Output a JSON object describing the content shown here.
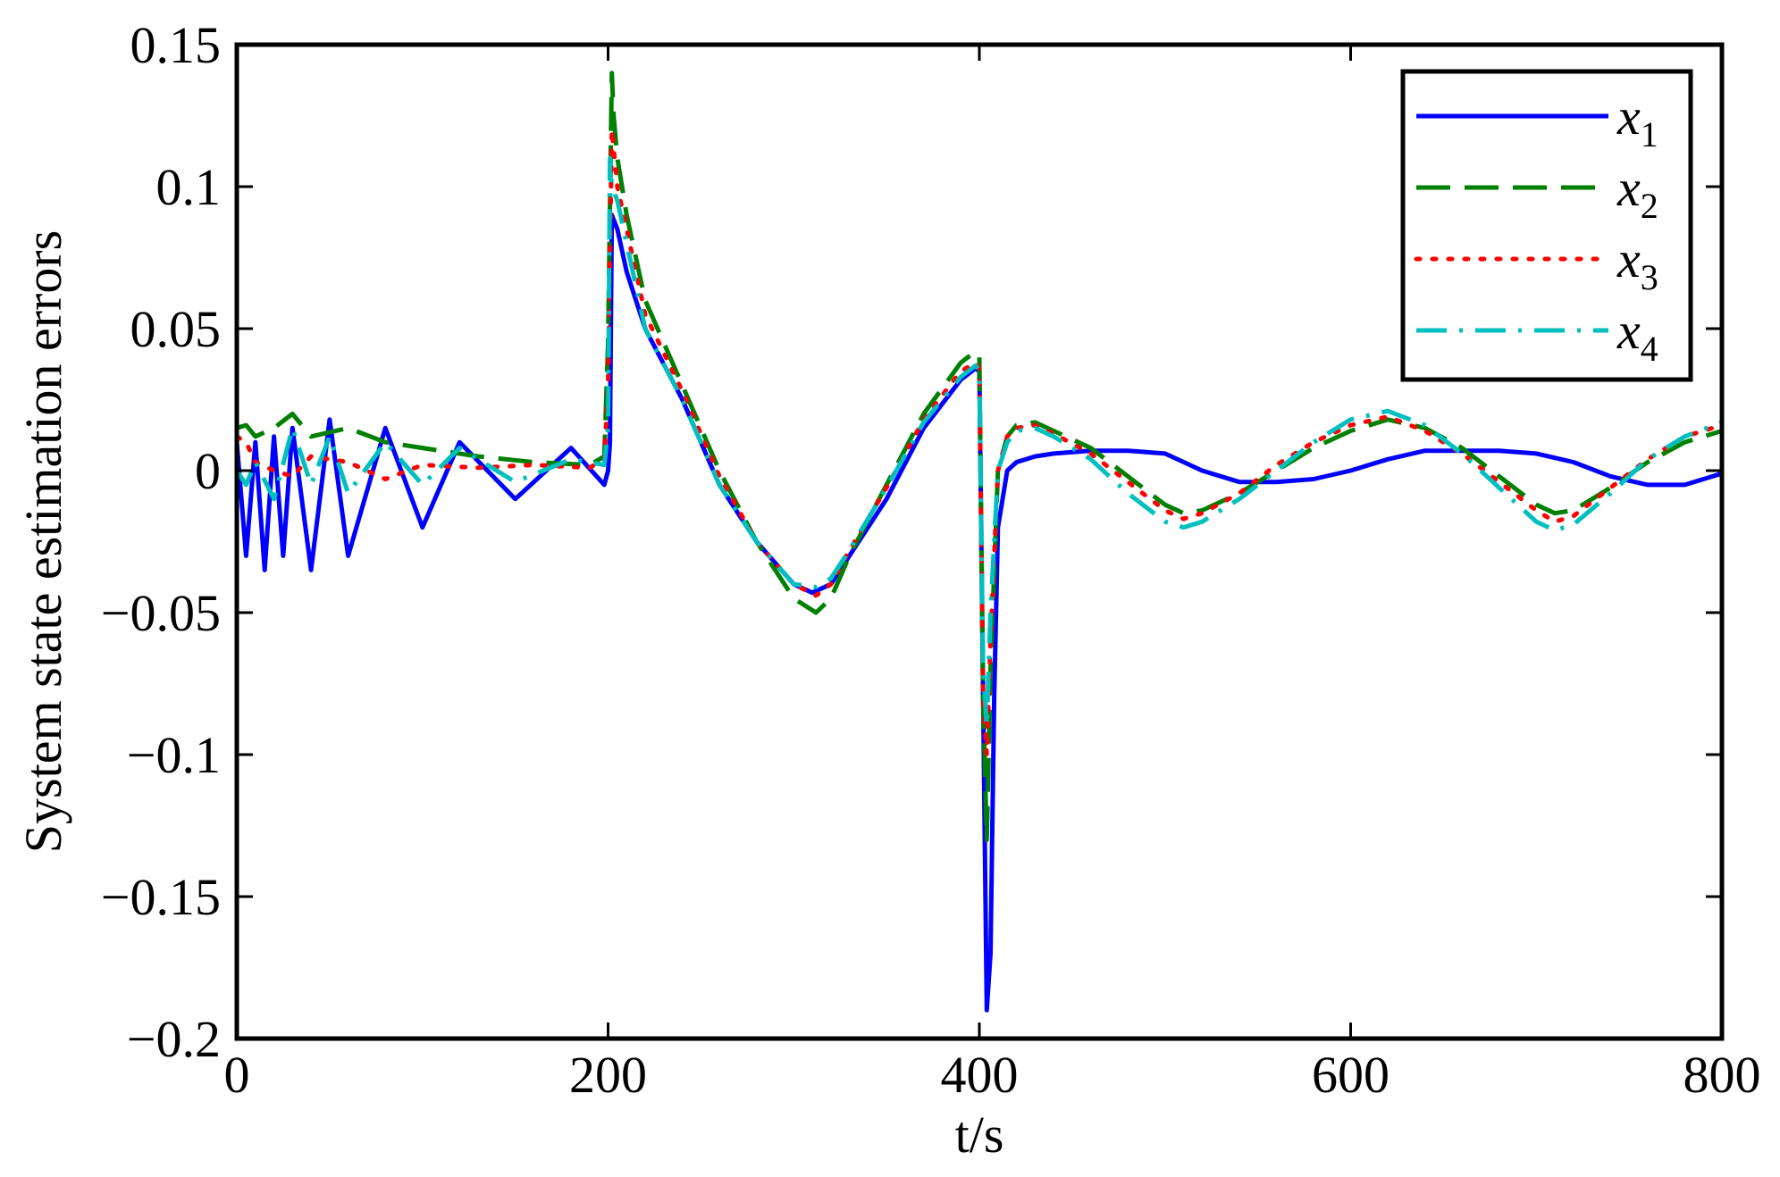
{
  "chart_data": {
    "type": "line",
    "title": "",
    "xlabel": "t/s",
    "ylabel": "System state estimation errors",
    "xlim": [
      0,
      800
    ],
    "ylim": [
      -0.2,
      0.15
    ],
    "xticks": [
      0,
      200,
      400,
      600,
      800
    ],
    "xtick_labels": [
      "0",
      "200",
      "400",
      "600",
      "800"
    ],
    "yticks": [
      -0.2,
      -0.15,
      -0.1,
      -0.05,
      0,
      0.05,
      0.1,
      0.15
    ],
    "ytick_labels": [
      "−0.2",
      "−0.15",
      "−0.1",
      "−0.05",
      "0",
      "0.05",
      "0.1",
      "0.15"
    ],
    "grid": false,
    "legend_position": "top-right",
    "series": [
      {
        "name": "x",
        "subscript": "1",
        "color": "#0000ff",
        "dash": "solid",
        "x": [
          0,
          5,
          10,
          15,
          20,
          25,
          30,
          40,
          50,
          60,
          80,
          100,
          120,
          150,
          180,
          198,
          200,
          201,
          202,
          205,
          210,
          220,
          240,
          260,
          280,
          300,
          310,
          320,
          330,
          350,
          370,
          390,
          398,
          400,
          402,
          404,
          406,
          408,
          410,
          415,
          420,
          430,
          440,
          460,
          480,
          500,
          520,
          540,
          560,
          580,
          600,
          620,
          640,
          660,
          680,
          700,
          720,
          740,
          760,
          780,
          800
        ],
        "y": [
          0.01,
          -0.03,
          0.01,
          -0.035,
          0.012,
          -0.03,
          0.015,
          -0.035,
          0.018,
          -0.03,
          0.015,
          -0.02,
          0.01,
          -0.01,
          0.008,
          -0.005,
          0.0,
          0.01,
          0.09,
          0.085,
          0.07,
          0.05,
          0.025,
          -0.005,
          -0.025,
          -0.04,
          -0.043,
          -0.04,
          -0.03,
          -0.01,
          0.015,
          0.032,
          0.036,
          0.035,
          -0.08,
          -0.19,
          -0.17,
          -0.08,
          -0.02,
          0.0,
          0.003,
          0.005,
          0.006,
          0.007,
          0.007,
          0.006,
          0.0,
          -0.004,
          -0.004,
          -0.003,
          0.0,
          0.004,
          0.007,
          0.007,
          0.007,
          0.006,
          0.003,
          -0.002,
          -0.005,
          -0.005,
          -0.001
        ]
      },
      {
        "name": "x",
        "subscript": "2",
        "color": "#008000",
        "dash": "dashed",
        "x": [
          0,
          5,
          10,
          20,
          30,
          40,
          60,
          80,
          100,
          130,
          160,
          190,
          198,
          200,
          202,
          203,
          205,
          210,
          220,
          240,
          260,
          280,
          300,
          312,
          320,
          330,
          350,
          370,
          390,
          398,
          400,
          402,
          404,
          406,
          410,
          415,
          420,
          430,
          440,
          460,
          480,
          500,
          510,
          520,
          540,
          560,
          580,
          600,
          620,
          640,
          660,
          680,
          700,
          710,
          720,
          740,
          760,
          780,
          800
        ],
        "y": [
          0.015,
          0.016,
          0.012,
          0.015,
          0.02,
          0.012,
          0.015,
          0.01,
          0.008,
          0.005,
          0.003,
          0.002,
          0.005,
          0.045,
          0.14,
          0.125,
          0.11,
          0.09,
          0.06,
          0.03,
          0.0,
          -0.025,
          -0.045,
          -0.05,
          -0.045,
          -0.03,
          -0.005,
          0.02,
          0.038,
          0.042,
          0.04,
          -0.08,
          -0.13,
          -0.07,
          0.0,
          0.012,
          0.016,
          0.017,
          0.014,
          0.008,
          -0.002,
          -0.012,
          -0.015,
          -0.014,
          -0.008,
          0.0,
          0.008,
          0.014,
          0.018,
          0.015,
          0.008,
          -0.002,
          -0.012,
          -0.015,
          -0.014,
          -0.006,
          0.003,
          0.01,
          0.014
        ]
      },
      {
        "name": "x",
        "subscript": "3",
        "color": "#ff0000",
        "dash": "dotted",
        "x": [
          0,
          5,
          10,
          20,
          30,
          40,
          60,
          80,
          100,
          130,
          160,
          190,
          198,
          200,
          202,
          205,
          210,
          220,
          240,
          260,
          280,
          300,
          312,
          320,
          330,
          350,
          370,
          390,
          398,
          400,
          402,
          404,
          406,
          410,
          415,
          420,
          430,
          440,
          460,
          480,
          500,
          510,
          520,
          540,
          560,
          580,
          600,
          620,
          640,
          660,
          680,
          700,
          710,
          720,
          740,
          760,
          780,
          800
        ],
        "y": [
          0.012,
          0.01,
          0.003,
          0.0,
          -0.002,
          0.005,
          0.003,
          -0.003,
          0.002,
          0.001,
          0.002,
          0.001,
          0.004,
          0.03,
          0.12,
          0.1,
          0.085,
          0.055,
          0.028,
          -0.002,
          -0.025,
          -0.04,
          -0.044,
          -0.04,
          -0.028,
          -0.006,
          0.018,
          0.035,
          0.038,
          0.036,
          -0.08,
          -0.1,
          -0.06,
          0.0,
          0.012,
          0.015,
          0.016,
          0.013,
          0.006,
          -0.004,
          -0.014,
          -0.017,
          -0.015,
          -0.008,
          0.002,
          0.01,
          0.016,
          0.019,
          0.014,
          0.006,
          -0.004,
          -0.014,
          -0.018,
          -0.016,
          -0.006,
          0.004,
          0.012,
          0.016
        ]
      },
      {
        "name": "x",
        "subscript": "4",
        "color": "#00bfbf",
        "dash": "dashdot",
        "x": [
          0,
          5,
          10,
          20,
          30,
          40,
          50,
          60,
          80,
          100,
          120,
          150,
          180,
          198,
          200,
          201,
          202,
          205,
          210,
          220,
          240,
          260,
          280,
          300,
          312,
          320,
          330,
          350,
          370,
          390,
          398,
          400,
          402,
          404,
          406,
          410,
          415,
          420,
          430,
          440,
          460,
          480,
          500,
          510,
          520,
          540,
          560,
          580,
          600,
          620,
          640,
          660,
          680,
          700,
          710,
          720,
          740,
          760,
          780,
          800
        ],
        "y": [
          0.0,
          -0.005,
          0.003,
          -0.01,
          0.015,
          -0.005,
          0.012,
          -0.008,
          0.01,
          -0.005,
          0.008,
          -0.004,
          0.004,
          0.002,
          0.015,
          0.11,
          0.1,
          0.095,
          0.08,
          0.05,
          0.025,
          -0.005,
          -0.025,
          -0.04,
          -0.041,
          -0.038,
          -0.028,
          -0.006,
          0.017,
          0.033,
          0.037,
          0.035,
          -0.07,
          -0.09,
          -0.05,
          0.0,
          0.01,
          0.014,
          0.015,
          0.012,
          0.004,
          -0.008,
          -0.018,
          -0.02,
          -0.018,
          -0.01,
          0.0,
          0.01,
          0.018,
          0.021,
          0.016,
          0.006,
          -0.006,
          -0.018,
          -0.021,
          -0.019,
          -0.008,
          0.004,
          0.012,
          0.017
        ]
      }
    ]
  }
}
